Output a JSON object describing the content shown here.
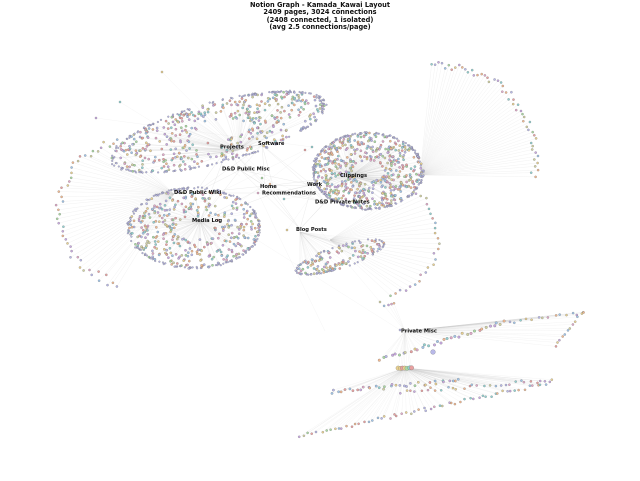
{
  "title": {
    "line1": "Notion Graph - Kamada_Kawai Layout",
    "line2": "2409 pages, 3024 connections",
    "line3": "(2408 connected, 1 isolated)",
    "line4": "(avg 2.5 connections/page)"
  },
  "hub_labels": {
    "projects": "Projects",
    "software": "Software",
    "clippings": "Clippings",
    "dnd_public_misc": "D&D Public Misc",
    "home": "Home",
    "work": "Work",
    "recommendations": "Recommendations",
    "dnd_public_wiki": "D&D Public Wiki",
    "dnd_private_notes": "D&D Private Notes",
    "media_log": "Media Log",
    "blog_posts": "Blog Posts",
    "private_misc": "Private Misc"
  },
  "colors": {
    "edge": "#c8c8c8",
    "node_palette": [
      "#e8a0a0",
      "#a0c4e8",
      "#a8d8a0",
      "#e8d090",
      "#c8a8e0",
      "#f0b890",
      "#90d0d0",
      "#d0d0a0",
      "#b8b8e8",
      "#e0a8c8"
    ],
    "node_stroke": "#666666"
  }
}
